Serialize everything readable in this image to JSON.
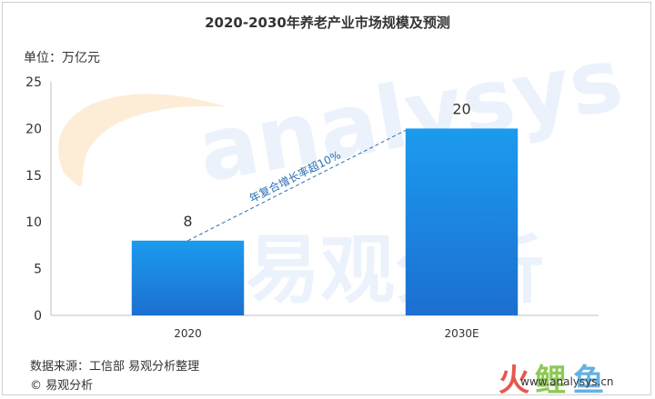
{
  "chart_data": {
    "type": "bar",
    "title": "2020-2030年养老产业市场规模及预测",
    "unit_label": "单位：万亿元",
    "categories": [
      "2020",
      "2030E"
    ],
    "values": [
      8,
      20
    ],
    "data_labels": [
      "8",
      "20"
    ],
    "ylim": [
      0,
      25
    ],
    "yticks": [
      0,
      5,
      10,
      15,
      20,
      25
    ],
    "grid": false,
    "bar_color": "#1a8ee0",
    "trend_annotation": "年复合增长率超10%"
  },
  "footer": {
    "source": "数据来源：工信部  易观分析整理",
    "copyright": "© 易观分析"
  },
  "watermark": {
    "text": "analysys",
    "cn": "易观分析",
    "logo_url": "www.analysys.cn"
  }
}
